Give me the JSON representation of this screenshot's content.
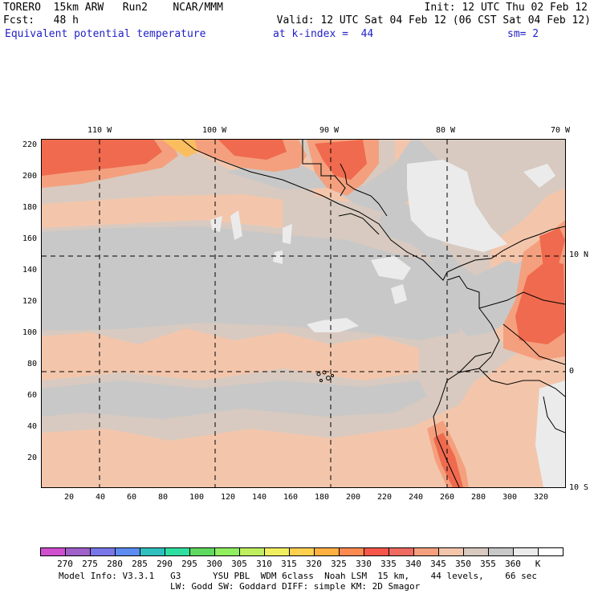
{
  "header": {
    "line1_left": "TORERO  15km ARW   Run2    NCAR/MMM",
    "line1_right": "Init: 12 UTC Thu 02 Feb 12",
    "line2_left": "Fcst:   48 h",
    "line2_right": "Valid: 12 UTC Sat 04 Feb 12 (06 CST Sat 04 Feb 12)",
    "line3_field": "Equivalent potential temperature",
    "line3_level": "at k-index =  44",
    "line3_smooth": "sm= 2"
  },
  "map": {
    "top_lon_labels": [
      "110 W",
      "100 W",
      "90 W",
      "80 W",
      "70 W"
    ],
    "right_lat_labels": [
      "10 N",
      "0",
      "10 S"
    ],
    "left_ticks": [
      "220",
      "200",
      "180",
      "160",
      "140",
      "120",
      "100",
      "80",
      "60",
      "40",
      "20"
    ],
    "bottom_ticks": [
      "20",
      "40",
      "60",
      "80",
      "100",
      "120",
      "140",
      "160",
      "180",
      "200",
      "220",
      "240",
      "260",
      "280",
      "300",
      "320"
    ],
    "colors": {
      "c345": "#d8cac0",
      "c350": "#c8c8c8",
      "c355": "#ebebeb",
      "c340": "#f3c6ac",
      "c335": "#f4a07e",
      "c330": "#ef6a4e",
      "c325": "#f2864a",
      "c320": "#fbbe5e",
      "coast": "#000000",
      "grid": "#000000"
    }
  },
  "colorbar": {
    "colors": [
      "#cf4fcf",
      "#9f60c8",
      "#7a76e8",
      "#5c8cf0",
      "#2fbfbf",
      "#2fdf9f",
      "#5fd95f",
      "#8fef5f",
      "#bfef5f",
      "#efef5f",
      "#ffd04f",
      "#ffb040",
      "#ff8a50",
      "#f6564a",
      "#ef6a60",
      "#f4a07e",
      "#f3c6ac",
      "#d8cac0",
      "#c8c8c8",
      "#ebebeb",
      "#ffffff"
    ],
    "labels": [
      "270",
      "275",
      "280",
      "285",
      "290",
      "295",
      "300",
      "305",
      "310",
      "315",
      "320",
      "325",
      "330",
      "335",
      "340",
      "345",
      "350",
      "355",
      "360",
      "K"
    ]
  },
  "footer": {
    "line1": "Model Info: V3.3.1   G3      YSU PBL  WDM 6class  Noah LSM  15 km,    44 levels,    66 sec",
    "line2": "LW: Godd SW: Goddard DIFF: simple KM: 2D Smagor"
  }
}
